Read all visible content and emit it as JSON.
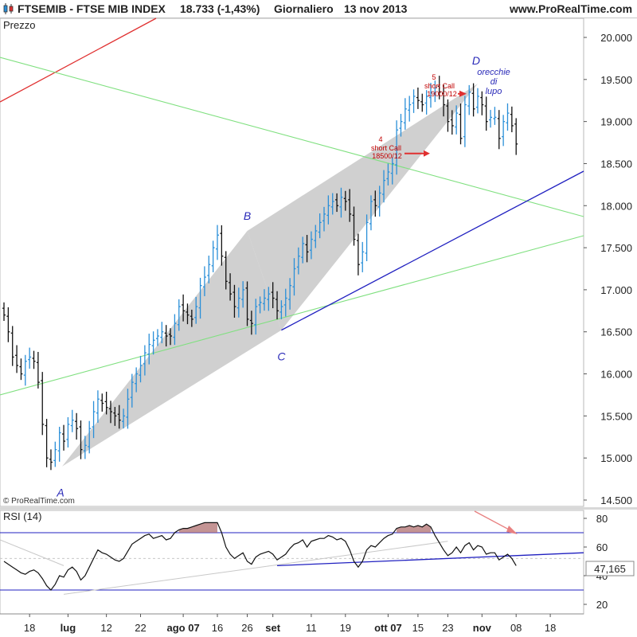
{
  "header": {
    "symbol": "FTSEMIB - FTSE MIB INDEX",
    "quote": "18.733 (-1,43%)",
    "period": "Giornaliero",
    "date": "13 nov 2013",
    "site": "www.ProRealTime.com"
  },
  "chart_data": [
    {
      "type": "ohlc",
      "title": "Prezzo",
      "watermark": "© ProRealTime.com",
      "ylim": [
        14400,
        20300
      ],
      "y_ticks": [
        "20.000",
        "19.500",
        "19.000",
        "18.500",
        "18.000",
        "17.500",
        "17.000",
        "16.500",
        "16.000",
        "15.500",
        "15.000",
        "14.500"
      ],
      "y_tick_values": [
        20000,
        19500,
        19000,
        18500,
        18000,
        17500,
        17000,
        16500,
        16000,
        15500,
        15000,
        14500
      ],
      "x_ticks": [
        "18",
        "lug",
        "12",
        "22",
        "ago 07",
        "16",
        "26",
        "set",
        "11",
        "19",
        "ott 07",
        "15",
        "23",
        "nov",
        "08",
        "18"
      ],
      "x_tick_bars": [
        6,
        15,
        24,
        32,
        42,
        50,
        57,
        63,
        72,
        80,
        90,
        97,
        104,
        112,
        120,
        128
      ],
      "n_slots": 131,
      "closes": [
        16700,
        16500,
        16200,
        16100,
        16000,
        16150,
        16200,
        16150,
        15900,
        15400,
        15000,
        14950,
        15100,
        15300,
        15200,
        15400,
        15450,
        15350,
        15100,
        15150,
        15350,
        15550,
        15700,
        15650,
        15600,
        15550,
        15500,
        15450,
        15500,
        15700,
        15900,
        16000,
        16100,
        16250,
        16350,
        16400,
        16450,
        16500,
        16450,
        16450,
        16600,
        16800,
        16750,
        16700,
        16650,
        16800,
        17050,
        17150,
        17300,
        17500,
        17650,
        17400,
        17100,
        16950,
        16800,
        16900,
        17000,
        16650,
        16600,
        16800,
        16850,
        16900,
        16950,
        16900,
        16750,
        16800,
        16900,
        17050,
        17250,
        17400,
        17550,
        17450,
        17600,
        17700,
        17800,
        17900,
        18000,
        18050,
        18000,
        18100,
        18050,
        17900,
        17600,
        17300,
        17450,
        17800,
        18050,
        18000,
        18150,
        18300,
        18400,
        18500,
        18900,
        19000,
        19150,
        19200,
        19300,
        19250,
        19200,
        19300,
        19350,
        19400,
        19350,
        19200,
        19000,
        18950,
        19100,
        18800,
        19200,
        19350,
        19150,
        19300,
        19200,
        19000,
        19050,
        19050,
        18800,
        19000,
        19100,
        18950,
        18733
      ],
      "rsi": {
        "title": "RSI (14)",
        "value_label": "47,165",
        "levels": [
          70,
          30
        ],
        "ylim": [
          13,
          84
        ],
        "y_ticks": [
          "80",
          "60",
          "40",
          "20"
        ],
        "y_tick_values": [
          80,
          60,
          40,
          20
        ],
        "values": [
          50,
          48,
          46,
          44,
          42,
          41,
          43,
          44,
          42,
          38,
          33,
          30,
          34,
          40,
          39,
          44,
          46,
          43,
          37,
          40,
          46,
          52,
          58,
          56,
          55,
          53,
          51,
          50,
          52,
          57,
          62,
          64,
          66,
          68,
          69,
          66,
          67,
          68,
          65,
          66,
          70,
          72,
          73,
          73,
          74,
          75,
          76,
          77,
          77,
          77,
          77,
          70,
          60,
          55,
          52,
          54,
          56,
          50,
          48,
          53,
          55,
          56,
          57,
          55,
          51,
          53,
          55,
          59,
          62,
          63,
          65,
          60,
          64,
          65,
          66,
          66,
          68,
          67,
          65,
          66,
          64,
          58,
          50,
          46,
          50,
          58,
          61,
          60,
          63,
          66,
          68,
          69,
          73,
          74,
          74,
          75,
          74,
          75,
          74,
          76,
          74,
          68,
          63,
          58,
          54,
          56,
          60,
          56,
          61,
          63,
          58,
          61,
          60,
          55,
          56,
          56,
          51,
          53,
          55,
          52,
          47
        ]
      },
      "pattern": {
        "labels": [
          "A",
          "B",
          "C",
          "D"
        ],
        "orecchie": [
          "orecchie",
          "di",
          "lupo"
        ],
        "annotations": [
          {
            "step": "4",
            "label": "short Call",
            "strike": "18500/12"
          },
          {
            "step": "5",
            "label": "short Call",
            "strike": "19000/12"
          }
        ]
      },
      "colors": {
        "up": "#2a8fd8",
        "down": "#111111",
        "wedge": "#c8c8c8",
        "red_line": "#e03030",
        "green_line": "#80e080",
        "blue_line": "#2020c0",
        "arrow": "#e03030",
        "rsi_line": "#111111",
        "rsi_high_fill": "#b07070",
        "rsi_low_fill": "#30a030"
      }
    }
  ]
}
